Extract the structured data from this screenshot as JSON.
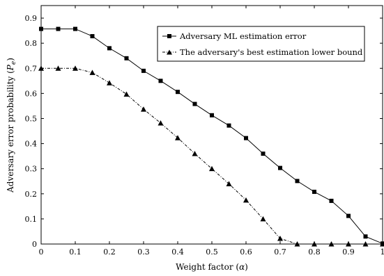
{
  "chart_data": {
    "type": "line",
    "xlabel": "Weight factor (α)",
    "ylabel": "Adversary error probability (Pe)",
    "xlim": [
      0,
      1
    ],
    "ylim": [
      0,
      0.95
    ],
    "x_ticks": [
      "0",
      "0.1",
      "0.2",
      "0.3",
      "0.4",
      "0.5",
      "0.6",
      "0.7",
      "0.8",
      "0.9",
      "1"
    ],
    "y_ticks": [
      "0",
      "0.1",
      "0.2",
      "0.3",
      "0.4",
      "0.5",
      "0.6",
      "0.7",
      "0.8",
      "0.9"
    ],
    "legend_position": "top-right",
    "grid": false,
    "x": [
      0,
      0.05,
      0.1,
      0.15,
      0.2,
      0.25,
      0.3,
      0.35,
      0.4,
      0.45,
      0.5,
      0.55,
      0.6,
      0.65,
      0.7,
      0.75,
      0.8,
      0.85,
      0.9,
      0.95,
      1.0
    ],
    "series": [
      {
        "name": "Adversary ML estimation error",
        "marker": "square",
        "line_style": "solid",
        "values": [
          0.857,
          0.857,
          0.857,
          0.828,
          0.78,
          0.74,
          0.69,
          0.65,
          0.606,
          0.558,
          0.513,
          0.472,
          0.422,
          0.36,
          0.303,
          0.251,
          0.208,
          0.172,
          0.112,
          0.03,
          0.002
        ]
      },
      {
        "name": "The adversary's best estimation lower bound",
        "marker": "triangle",
        "line_style": "dash-dot",
        "values": [
          0.7,
          0.7,
          0.7,
          0.683,
          0.642,
          0.597,
          0.537,
          0.482,
          0.423,
          0.36,
          0.3,
          0.24,
          0.175,
          0.1,
          0.022,
          0.0,
          0.0,
          0.0,
          0.0,
          0.0,
          0.0
        ]
      }
    ]
  }
}
